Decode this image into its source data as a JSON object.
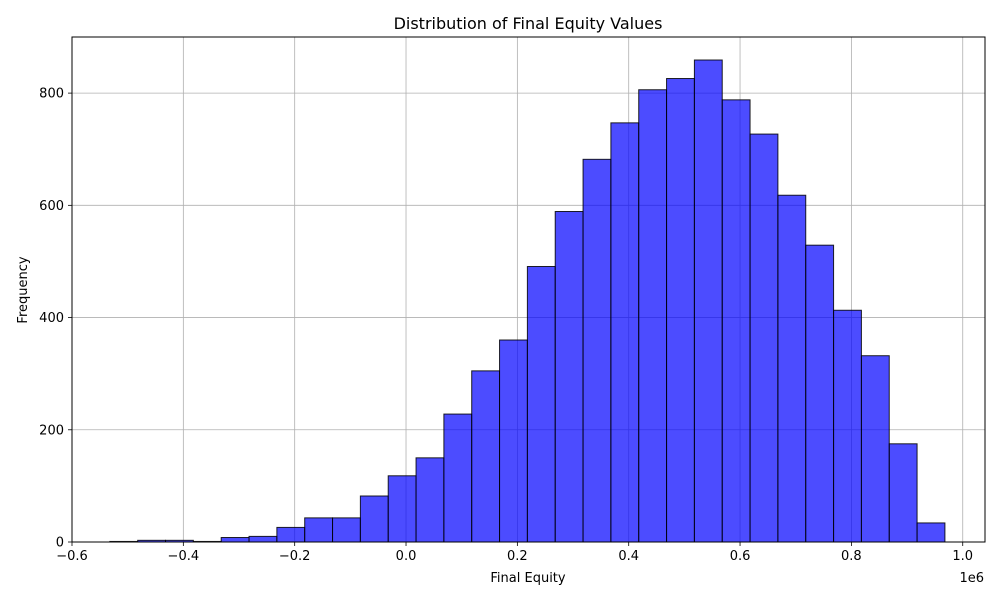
{
  "chart_data": {
    "type": "bar",
    "subtype": "histogram",
    "title": "Distribution of Final Equity Values",
    "xlabel": "Final Equity",
    "ylabel": "Frequency",
    "x_scale_text": "1e6",
    "xlim": [
      -0.6,
      1.04
    ],
    "ylim": [
      0,
      900
    ],
    "x_ticks": [
      -0.6,
      -0.4,
      -0.2,
      0.0,
      0.2,
      0.4,
      0.6,
      0.8,
      1.0
    ],
    "x_tick_labels": [
      "−0.6",
      "−0.4",
      "−0.2",
      "0.0",
      "0.2",
      "0.4",
      "0.6",
      "0.8",
      "1.0"
    ],
    "y_ticks": [
      0,
      200,
      400,
      600,
      800
    ],
    "y_tick_labels": [
      "0",
      "200",
      "400",
      "600",
      "800"
    ],
    "grid": true,
    "bar_color": "#0000ff",
    "bar_opacity": 0.7,
    "edge_color": "#000000",
    "bins": [
      {
        "x0": -0.532,
        "x1": -0.482,
        "value": 1
      },
      {
        "x0": -0.482,
        "x1": -0.432,
        "value": 3
      },
      {
        "x0": -0.432,
        "x1": -0.382,
        "value": 3
      },
      {
        "x0": -0.382,
        "x1": -0.332,
        "value": 1
      },
      {
        "x0": -0.332,
        "x1": -0.282,
        "value": 8
      },
      {
        "x0": -0.282,
        "x1": -0.232,
        "value": 10
      },
      {
        "x0": -0.232,
        "x1": -0.182,
        "value": 26
      },
      {
        "x0": -0.182,
        "x1": -0.132,
        "value": 43
      },
      {
        "x0": -0.132,
        "x1": -0.082,
        "value": 43
      },
      {
        "x0": -0.082,
        "x1": -0.032,
        "value": 82
      },
      {
        "x0": -0.032,
        "x1": 0.018,
        "value": 118
      },
      {
        "x0": 0.018,
        "x1": 0.068,
        "value": 150
      },
      {
        "x0": 0.068,
        "x1": 0.118,
        "value": 228
      },
      {
        "x0": 0.118,
        "x1": 0.168,
        "value": 305
      },
      {
        "x0": 0.168,
        "x1": 0.218,
        "value": 360
      },
      {
        "x0": 0.218,
        "x1": 0.268,
        "value": 491
      },
      {
        "x0": 0.268,
        "x1": 0.318,
        "value": 589
      },
      {
        "x0": 0.318,
        "x1": 0.368,
        "value": 682
      },
      {
        "x0": 0.368,
        "x1": 0.418,
        "value": 747
      },
      {
        "x0": 0.418,
        "x1": 0.468,
        "value": 806
      },
      {
        "x0": 0.468,
        "x1": 0.518,
        "value": 826
      },
      {
        "x0": 0.518,
        "x1": 0.568,
        "value": 859
      },
      {
        "x0": 0.568,
        "x1": 0.618,
        "value": 788
      },
      {
        "x0": 0.618,
        "x1": 0.668,
        "value": 727
      },
      {
        "x0": 0.668,
        "x1": 0.718,
        "value": 618
      },
      {
        "x0": 0.718,
        "x1": 0.768,
        "value": 529
      },
      {
        "x0": 0.768,
        "x1": 0.818,
        "value": 413
      },
      {
        "x0": 0.818,
        "x1": 0.868,
        "value": 332
      },
      {
        "x0": 0.868,
        "x1": 0.918,
        "value": 175
      },
      {
        "x0": 0.918,
        "x1": 0.968,
        "value": 34
      }
    ]
  }
}
